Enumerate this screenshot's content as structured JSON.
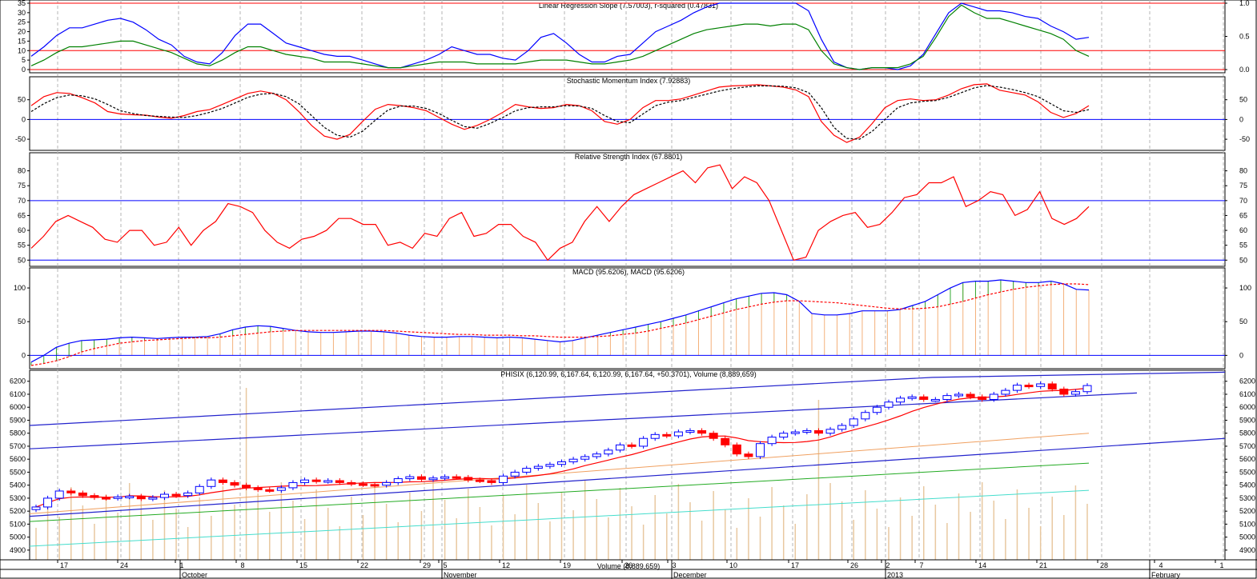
{
  "chart_data": [
    {
      "type": "line",
      "title": "Linear Regression Slope (7.57003), r-squared (0.47831)",
      "ylim": [
        0,
        35
      ],
      "left_ticks": [
        "35",
        "30",
        "25",
        "20",
        "15",
        "10",
        "5",
        "0"
      ],
      "right_ticks": [
        "1.0",
        "0.5",
        "0.0"
      ],
      "series": [
        {
          "color": "#0000ff",
          "values": [
            7,
            12,
            18,
            22,
            22,
            24,
            26,
            27,
            25,
            21,
            16,
            13,
            7,
            4,
            3,
            9,
            18,
            24,
            24,
            19,
            14,
            12,
            10,
            8,
            7,
            7,
            5,
            3,
            1,
            1,
            3,
            5,
            8,
            12,
            10,
            8,
            8,
            6,
            5,
            10,
            17,
            19,
            14,
            8,
            4,
            4,
            7,
            8,
            14,
            20,
            23,
            26,
            30,
            33,
            35,
            35,
            35,
            35,
            35,
            35,
            35,
            31,
            16,
            4,
            1,
            0,
            1,
            1,
            0,
            2,
            8,
            19,
            30,
            35,
            33,
            31,
            31,
            30,
            28,
            27,
            23,
            20,
            16,
            17
          ]
        },
        {
          "color": "#008000",
          "values": [
            2,
            5,
            9,
            12,
            12,
            13,
            14,
            15,
            15,
            13,
            11,
            9,
            6,
            3,
            2,
            5,
            9,
            12,
            12,
            10,
            8,
            7,
            6,
            4,
            4,
            4,
            3,
            2,
            1,
            1,
            2,
            3,
            4,
            4,
            4,
            3,
            3,
            3,
            3,
            4,
            5,
            5,
            5,
            4,
            3,
            3,
            4,
            5,
            7,
            10,
            13,
            16,
            19,
            21,
            22,
            23,
            24,
            24,
            23,
            24,
            24,
            21,
            10,
            3,
            1,
            0,
            1,
            1,
            1,
            3,
            7,
            17,
            28,
            34,
            30,
            27,
            27,
            25,
            23,
            21,
            19,
            16,
            10,
            7
          ]
        }
      ],
      "hlines_red": [
        0,
        10
      ],
      "hline_right": 35
    },
    {
      "type": "line",
      "title": "Stochastic Momentum Index (7.92883)",
      "ylim": [
        -70,
        100
      ],
      "left_ticks": [
        "50",
        "0",
        "-50"
      ],
      "right_ticks": [
        "50",
        "0",
        "-50"
      ],
      "series": [
        {
          "name": "",
          "color": "#ff0000",
          "values": [
            35,
            58,
            68,
            66,
            55,
            42,
            20,
            14,
            12,
            11,
            6,
            3,
            10,
            20,
            25,
            38,
            52,
            66,
            72,
            66,
            50,
            20,
            -15,
            -42,
            -50,
            -38,
            -5,
            26,
            38,
            35,
            30,
            22,
            5,
            -12,
            -25,
            -15,
            0,
            18,
            38,
            32,
            28,
            30,
            38,
            35,
            22,
            -5,
            -12,
            0,
            30,
            48,
            48,
            52,
            62,
            72,
            82,
            85,
            86,
            88,
            85,
            82,
            75,
            58,
            -5,
            -40,
            -58,
            -45,
            -10,
            30,
            48,
            52,
            48,
            50,
            62,
            78,
            88,
            90,
            74,
            68,
            62,
            45,
            18,
            5,
            15,
            35
          ]
        },
        {
          "name": "",
          "color": "#000000",
          "dash": true,
          "values": [
            20,
            40,
            55,
            62,
            60,
            52,
            38,
            22,
            15,
            10,
            8,
            6,
            5,
            10,
            18,
            28,
            42,
            56,
            64,
            66,
            58,
            40,
            10,
            -20,
            -40,
            -45,
            -30,
            -2,
            24,
            34,
            34,
            28,
            15,
            -2,
            -18,
            -22,
            -10,
            5,
            22,
            30,
            32,
            32,
            35,
            34,
            28,
            10,
            -5,
            -8,
            14,
            35,
            44,
            48,
            56,
            64,
            72,
            78,
            82,
            85,
            85,
            84,
            80,
            68,
            30,
            -20,
            -48,
            -50,
            -30,
            0,
            30,
            42,
            46,
            48,
            56,
            68,
            80,
            86,
            82,
            76,
            68,
            58,
            40,
            22,
            18,
            25
          ]
        }
      ],
      "hline_blue": 0
    },
    {
      "type": "line",
      "title": "Relative Strength Index (67.8801)",
      "ylim": [
        49,
        85
      ],
      "left_ticks": [
        "80",
        "75",
        "70",
        "65",
        "60",
        "55",
        "50"
      ],
      "right_ticks": [
        "80",
        "75",
        "70",
        "65",
        "60",
        "55",
        "50"
      ],
      "series": [
        {
          "name": "",
          "color": "#ff0000",
          "values": [
            54,
            58,
            63,
            65,
            63,
            61,
            57,
            56,
            60,
            60,
            55,
            56,
            61,
            55,
            60,
            63,
            69,
            68,
            66,
            60,
            56,
            54,
            57,
            58,
            60,
            64,
            64,
            62,
            62,
            55,
            56,
            54,
            59,
            58,
            64,
            66,
            58,
            59,
            62,
            62,
            58,
            56,
            50,
            54,
            56,
            63,
            68,
            63,
            68,
            72,
            74,
            76,
            78,
            80,
            76,
            81,
            82,
            74,
            78,
            76,
            70,
            60,
            50,
            51,
            60,
            63,
            65,
            66,
            61,
            62,
            66,
            71,
            72,
            76,
            76,
            78,
            68,
            70,
            73,
            72,
            65,
            67,
            73,
            64,
            62,
            64,
            68
          ]
        }
      ],
      "hlines_blue": [
        50,
        70
      ]
    },
    {
      "type": "line",
      "title": "MACD (95.6206), MACD (95.6206)",
      "ylim": [
        -15,
        125
      ],
      "left_ticks": [
        "100",
        "50",
        "0"
      ],
      "right_ticks": [
        "100",
        "50",
        "0"
      ],
      "series": [
        {
          "name": "",
          "color": "#0000ff",
          "values": [
            -10,
            0,
            12,
            18,
            22,
            23,
            24,
            26,
            27,
            26,
            25,
            26,
            27,
            27,
            28,
            32,
            38,
            42,
            44,
            43,
            40,
            37,
            35,
            34,
            34,
            35,
            36,
            36,
            35,
            33,
            30,
            28,
            27,
            27,
            28,
            28,
            27,
            26,
            27,
            26,
            24,
            22,
            20,
            22,
            26,
            30,
            34,
            38,
            42,
            46,
            50,
            55,
            60,
            66,
            72,
            78,
            84,
            88,
            92,
            93,
            90,
            80,
            62,
            60,
            60,
            62,
            66,
            66,
            66,
            68,
            74,
            80,
            90,
            100,
            108,
            110,
            110,
            112,
            110,
            108,
            108,
            110,
            106,
            98,
            97
          ]
        },
        {
          "name": "",
          "color": "#ff0000",
          "dash": true,
          "values": [
            -15,
            -12,
            -8,
            -2,
            5,
            10,
            14,
            18,
            20,
            22,
            23,
            24,
            25,
            26,
            26,
            27,
            29,
            31,
            33,
            35,
            36,
            37,
            37,
            37,
            37,
            37,
            37,
            37,
            37,
            36,
            35,
            34,
            33,
            32,
            31,
            31,
            30,
            30,
            30,
            29,
            29,
            28,
            27,
            27,
            27,
            28,
            29,
            31,
            33,
            36,
            40,
            44,
            48,
            53,
            58,
            63,
            68,
            72,
            76,
            79,
            81,
            81,
            80,
            79,
            78,
            76,
            74,
            72,
            70,
            69,
            69,
            70,
            72,
            76,
            80,
            85,
            90,
            94,
            98,
            101,
            103,
            105,
            106,
            106,
            105
          ]
        }
      ],
      "hline_blue": 0
    },
    {
      "type": "bar",
      "title": "PHISIX (6,120.99, 6,167.64, 6,120.99, 6,167.64, +50.3701), Volume (8,889,659)",
      "volume_label": "Volume (8,889,659)",
      "ylim": [
        4850,
        6260
      ],
      "left_ticks": [
        "6200",
        "6100",
        "6000",
        "5900",
        "5800",
        "5700",
        "5600",
        "5500",
        "5400",
        "5300",
        "5200",
        "5100",
        "5000",
        "4900"
      ],
      "right_ticks": [
        "6200",
        "6100",
        "6000",
        "5900",
        "5800",
        "5700",
        "5600",
        "5500",
        "5400",
        "5300",
        "5200",
        "5100",
        "5000",
        "4900"
      ],
      "close": [
        5232,
        5300,
        5355,
        5340,
        5320,
        5305,
        5300,
        5310,
        5315,
        5295,
        5305,
        5330,
        5320,
        5340,
        5390,
        5440,
        5420,
        5400,
        5380,
        5365,
        5360,
        5380,
        5420,
        5440,
        5430,
        5435,
        5420,
        5410,
        5405,
        5400,
        5420,
        5450,
        5465,
        5445,
        5455,
        5465,
        5460,
        5440,
        5435,
        5420,
        5470,
        5500,
        5530,
        5545,
        5560,
        5580,
        5600,
        5620,
        5640,
        5670,
        5710,
        5700,
        5760,
        5790,
        5780,
        5810,
        5820,
        5800,
        5760,
        5710,
        5640,
        5620,
        5720,
        5770,
        5800,
        5810,
        5820,
        5800,
        5830,
        5860,
        5910,
        5960,
        6000,
        6040,
        6070,
        6080,
        6060,
        6060,
        6090,
        6100,
        6080,
        6060,
        6100,
        6130,
        6170,
        6160,
        6180,
        6140,
        6100,
        6120,
        6167
      ]
    }
  ],
  "x_axis": {
    "day_ticks": [
      "17",
      "24",
      "1",
      "8",
      "15",
      "22",
      "29",
      "5",
      "12",
      "19",
      "26",
      "3",
      "10",
      "17",
      "26",
      "2",
      "7",
      "14",
      "21",
      "28",
      "4",
      "1"
    ],
    "months": [
      "October",
      "November",
      "December",
      "2013",
      "February"
    ]
  }
}
